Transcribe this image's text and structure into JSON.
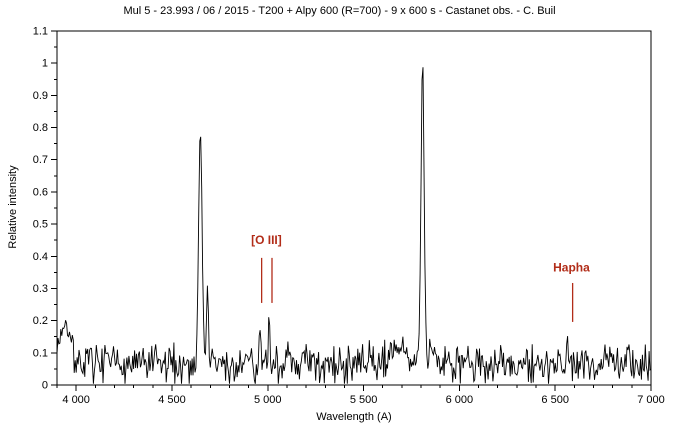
{
  "colors": {
    "background": "#ffffff",
    "axis": "#000000",
    "spectrum": "#000000",
    "annotation": "#b22d19",
    "text": "#000000"
  },
  "chart_data": {
    "type": "line",
    "title": "Mul 5 - 23.993 / 06 / 2015 - T200 + Alpy 600 (R=700) - 9 x 600 s - Castanet obs. - C. Buil",
    "xlabel": "Wavelength (A)",
    "ylabel": "Relative intensity",
    "xlim": [
      3900,
      7000
    ],
    "ylim": [
      0,
      1.1
    ],
    "grid": false,
    "legend": "none",
    "x_ticks": {
      "major_start": 4000,
      "major_step": 500,
      "minor_step": 100,
      "labels": [
        "4 000",
        "4 500",
        "5 000",
        "5 500",
        "6 000",
        "6 500",
        "7 000"
      ]
    },
    "y_ticks": {
      "major_start": 0,
      "major_step": 0.1,
      "minor_step": 0.05,
      "labels": [
        "0",
        "0.1",
        "0.2",
        "0.3",
        "0.4",
        "0.5",
        "0.6",
        "0.7",
        "0.8",
        "0.9",
        "1",
        "1.1"
      ]
    },
    "max_intensity": 1.0,
    "continuum": {
      "level": 0.062,
      "noise": 0.05
    },
    "sample_step_angstrom": 5,
    "noise_seed": 7,
    "emission_peaks": [
      {
        "center": 4648,
        "amplitude": 0.74,
        "sigma": 9
      },
      {
        "center": 4686,
        "amplitude": 0.25,
        "sigma": 5
      },
      {
        "center": 4959,
        "amplitude": 0.13,
        "sigma": 4
      },
      {
        "center": 5007,
        "amplitude": 0.16,
        "sigma": 4
      },
      {
        "center": 5808,
        "amplitude": 0.94,
        "sigma": 8
      },
      {
        "center": 6563,
        "amplitude": 0.09,
        "sigma": 6
      }
    ],
    "noise_bumps": [
      {
        "center": 3940,
        "amplitude": 0.12,
        "sigma": 30
      },
      {
        "center": 5690,
        "amplitude": 0.05,
        "sigma": 60
      },
      {
        "center": 5860,
        "amplitude": 0.05,
        "sigma": 12
      },
      {
        "center": 6790,
        "amplitude": 0.05,
        "sigma": 12
      },
      {
        "center": 6880,
        "amplitude": 0.05,
        "sigma": 10
      }
    ],
    "annotations": [
      {
        "label": "[O III]",
        "label_x": 4993,
        "label_y": 0.451,
        "lines": [
          {
            "x": 4968,
            "y_top": 0.395,
            "y_bottom": 0.255
          },
          {
            "x": 5022,
            "y_top": 0.395,
            "y_bottom": 0.255
          }
        ]
      },
      {
        "label": "Hapha",
        "label_x": 6585,
        "label_y": 0.365,
        "lines": [
          {
            "x": 6591,
            "y_top": 0.317,
            "y_bottom": 0.196
          }
        ]
      }
    ]
  }
}
